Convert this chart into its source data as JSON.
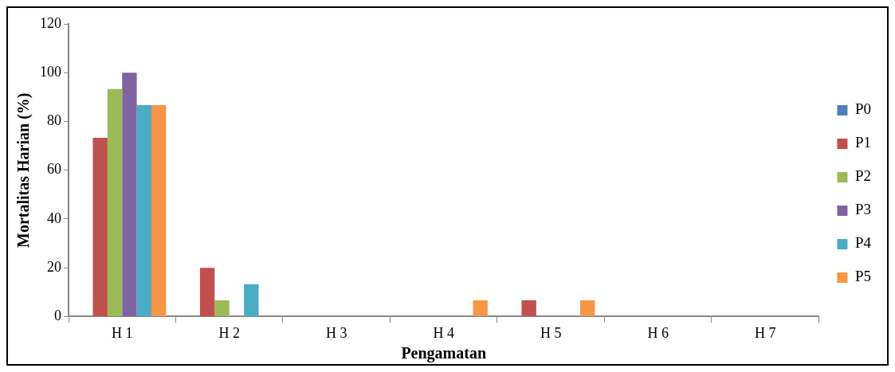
{
  "chart_data": {
    "type": "bar",
    "xlabel": "Pengamatan",
    "ylabel": "Mortalitas Harian (%)",
    "categories": [
      "H 1",
      "H 2",
      "H 3",
      "H 4",
      "H 5",
      "H 6",
      "H 7"
    ],
    "series": [
      {
        "name": "P0",
        "color": "#4f81bd",
        "values": [
          0,
          0,
          0,
          0,
          0,
          0,
          0
        ]
      },
      {
        "name": "P1",
        "color": "#c0504d",
        "values": [
          73.3,
          20,
          0,
          0,
          6.7,
          0,
          0
        ]
      },
      {
        "name": "P2",
        "color": "#9bbb59",
        "values": [
          93.3,
          6.7,
          0,
          0,
          0,
          0,
          0
        ]
      },
      {
        "name": "P3",
        "color": "#8064a2",
        "values": [
          100,
          0,
          0,
          0,
          0,
          0,
          0
        ]
      },
      {
        "name": "P4",
        "color": "#4bacc6",
        "values": [
          86.7,
          13.3,
          0,
          0,
          0,
          0,
          0
        ]
      },
      {
        "name": "P5",
        "color": "#f79646",
        "values": [
          86.7,
          0,
          0,
          6.7,
          6.7,
          0,
          0
        ]
      }
    ],
    "ylim": [
      0,
      120
    ],
    "yticks": [
      0,
      20,
      40,
      60,
      80,
      100,
      120
    ],
    "grid": false,
    "legend": "right"
  }
}
